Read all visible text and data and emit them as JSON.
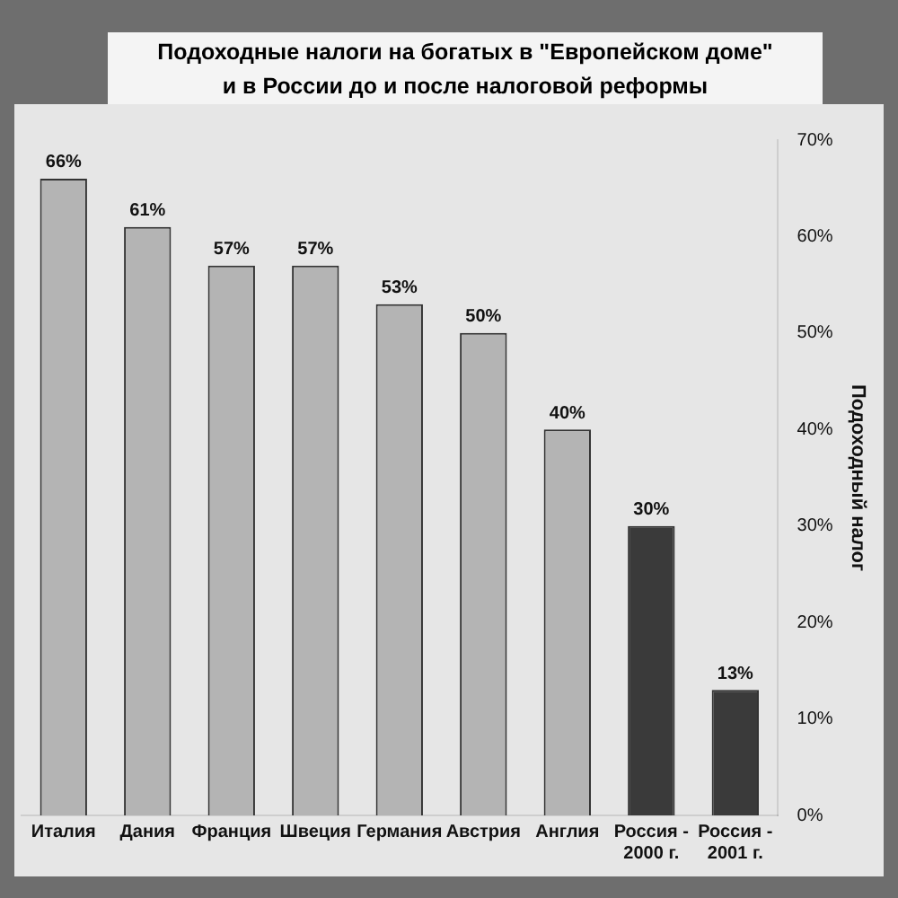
{
  "chart_data": {
    "type": "bar",
    "title": "Подоходные налоги на богатых в \"Европейском доме\"\nи в России до и после налоговой реформы",
    "categories": [
      "Италия",
      "Дания",
      "Франция",
      "Швеция",
      "Германия",
      "Австрия",
      "Англия",
      "Россия -\n2000 г.",
      "Россия -\n2001 г."
    ],
    "values": [
      66,
      61,
      57,
      57,
      53,
      50,
      40,
      30,
      13
    ],
    "value_labels": [
      "66%",
      "61%",
      "57%",
      "57%",
      "53%",
      "50%",
      "40%",
      "30%",
      "13%"
    ],
    "colors": [
      "#b4b4b4",
      "#b4b4b4",
      "#b4b4b4",
      "#b4b4b4",
      "#b4b4b4",
      "#b4b4b4",
      "#b4b4b4",
      "#3a3a3a",
      "#3a3a3a"
    ],
    "ylabel": "Подоходный налог",
    "ylim": [
      0,
      70
    ],
    "yticks": [
      {
        "value": 0,
        "label": "0%"
      },
      {
        "value": 10,
        "label": "10%"
      },
      {
        "value": 20,
        "label": "20%"
      },
      {
        "value": 30,
        "label": "30%"
      },
      {
        "value": 40,
        "label": "40%"
      },
      {
        "value": 50,
        "label": "50%"
      },
      {
        "value": 60,
        "label": "60%"
      },
      {
        "value": 70,
        "label": "70%"
      }
    ],
    "grid": false,
    "legend": false
  }
}
